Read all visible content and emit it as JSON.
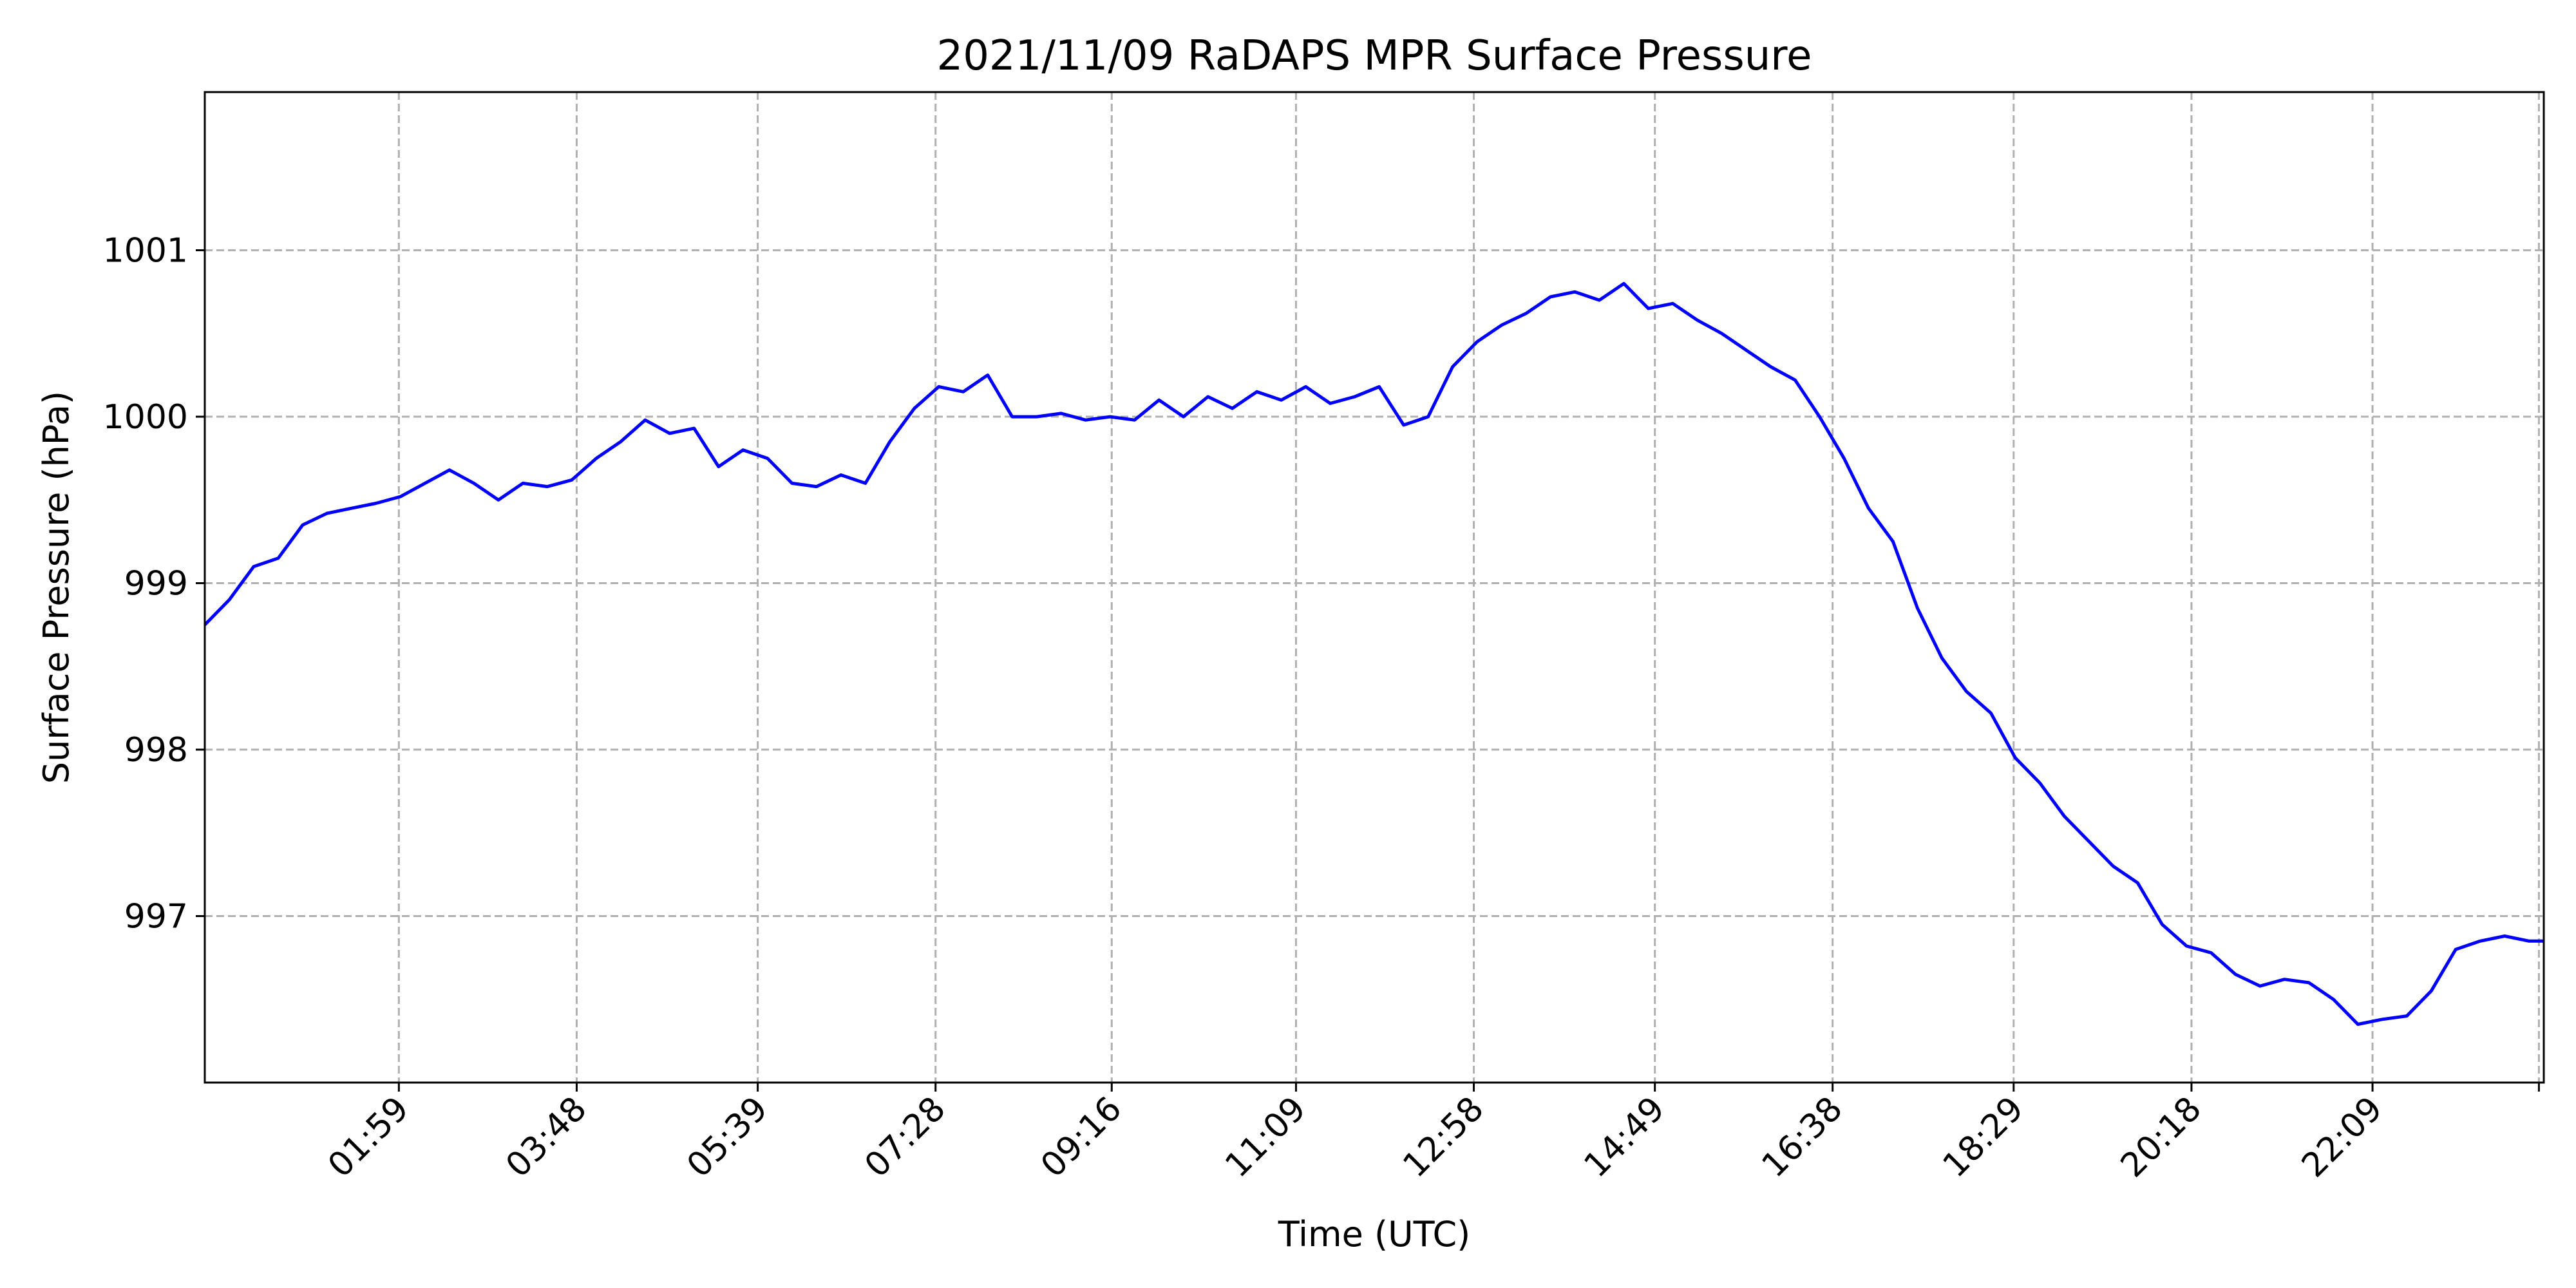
{
  "chart_data": {
    "type": "line",
    "title": "2021/11/09 RaDAPS MPR Surface Pressure",
    "xlabel": "Time (UTC)",
    "ylabel": "Surface Pressure (hPa)",
    "x_unit": "hours UTC",
    "xlim": [
      0.0,
      23.9
    ],
    "ylim": [
      996.0,
      1001.95
    ],
    "grid": true,
    "line_color": "#0000ff",
    "grid_color": "#b0b0b0",
    "x_ticks": [
      {
        "value": 1.983,
        "label": "01:59"
      },
      {
        "value": 3.8,
        "label": "03:48"
      },
      {
        "value": 5.65,
        "label": "05:39"
      },
      {
        "value": 7.467,
        "label": "07:28"
      },
      {
        "value": 9.267,
        "label": "09:16"
      },
      {
        "value": 11.15,
        "label": "11:09"
      },
      {
        "value": 12.967,
        "label": "12:58"
      },
      {
        "value": 14.817,
        "label": "14:49"
      },
      {
        "value": 16.633,
        "label": "16:38"
      },
      {
        "value": 18.483,
        "label": "18:29"
      },
      {
        "value": 20.3,
        "label": "20:18"
      },
      {
        "value": 22.15,
        "label": "22:09"
      },
      {
        "value": 23.85,
        "label": ""
      }
    ],
    "y_ticks": [
      {
        "value": 997,
        "label": "997"
      },
      {
        "value": 998,
        "label": "998"
      },
      {
        "value": 999,
        "label": "999"
      },
      {
        "value": 1000,
        "label": "1000"
      },
      {
        "value": 1001,
        "label": "1001"
      }
    ],
    "series": [
      {
        "x": [
          0.0,
          0.25,
          0.5,
          0.75,
          1.0,
          1.25,
          1.5,
          1.75,
          2.0,
          2.25,
          2.5,
          2.75,
          3.0,
          3.25,
          3.5,
          3.75,
          4.0,
          4.25,
          4.5,
          4.75,
          5.0,
          5.25,
          5.5,
          5.75,
          6.0,
          6.25,
          6.5,
          6.75,
          7.0,
          7.25,
          7.5,
          7.75,
          8.0,
          8.25,
          8.5,
          8.75,
          9.0,
          9.25,
          9.5,
          9.75,
          10.0,
          10.25,
          10.5,
          10.75,
          11.0,
          11.25,
          11.5,
          11.75,
          12.0,
          12.25,
          12.5,
          12.75,
          13.0,
          13.25,
          13.5,
          13.75,
          14.0,
          14.25,
          14.5,
          14.75,
          15.0,
          15.25,
          15.5,
          15.75,
          16.0,
          16.25,
          16.5,
          16.75,
          17.0,
          17.25,
          17.5,
          17.75,
          18.0,
          18.25,
          18.5,
          18.75,
          19.0,
          19.25,
          19.5,
          19.75,
          20.0,
          20.25,
          20.5,
          20.75,
          21.0,
          21.25,
          21.5,
          21.75,
          22.0,
          22.25,
          22.5,
          22.75,
          23.0,
          23.25,
          23.5,
          23.75,
          23.9
        ],
        "y": [
          998.75,
          998.9,
          999.1,
          999.15,
          999.35,
          999.42,
          999.45,
          999.48,
          999.52,
          999.6,
          999.68,
          999.6,
          999.5,
          999.6,
          999.58,
          999.62,
          999.75,
          999.85,
          999.98,
          999.9,
          999.93,
          999.7,
          999.8,
          999.75,
          999.6,
          999.58,
          999.65,
          999.6,
          999.85,
          1000.05,
          1000.18,
          1000.15,
          1000.25,
          1000.0,
          1000.0,
          1000.02,
          999.98,
          1000.0,
          999.98,
          1000.1,
          1000.0,
          1000.12,
          1000.05,
          1000.15,
          1000.1,
          1000.18,
          1000.08,
          1000.12,
          1000.18,
          999.95,
          1000.0,
          1000.3,
          1000.45,
          1000.55,
          1000.62,
          1000.72,
          1000.75,
          1000.7,
          1000.8,
          1000.65,
          1000.68,
          1000.58,
          1000.5,
          1000.4,
          1000.3,
          1000.22,
          1000.0,
          999.75,
          999.45,
          999.25,
          998.85,
          998.55,
          998.35,
          998.22,
          997.95,
          997.8,
          997.6,
          997.45,
          997.3,
          997.2,
          996.95,
          996.82,
          996.78,
          996.65,
          996.58,
          996.62,
          996.6,
          996.5,
          996.35,
          996.38,
          996.4,
          996.55,
          996.8,
          996.85,
          996.88,
          996.85,
          996.85
        ]
      }
    ]
  }
}
